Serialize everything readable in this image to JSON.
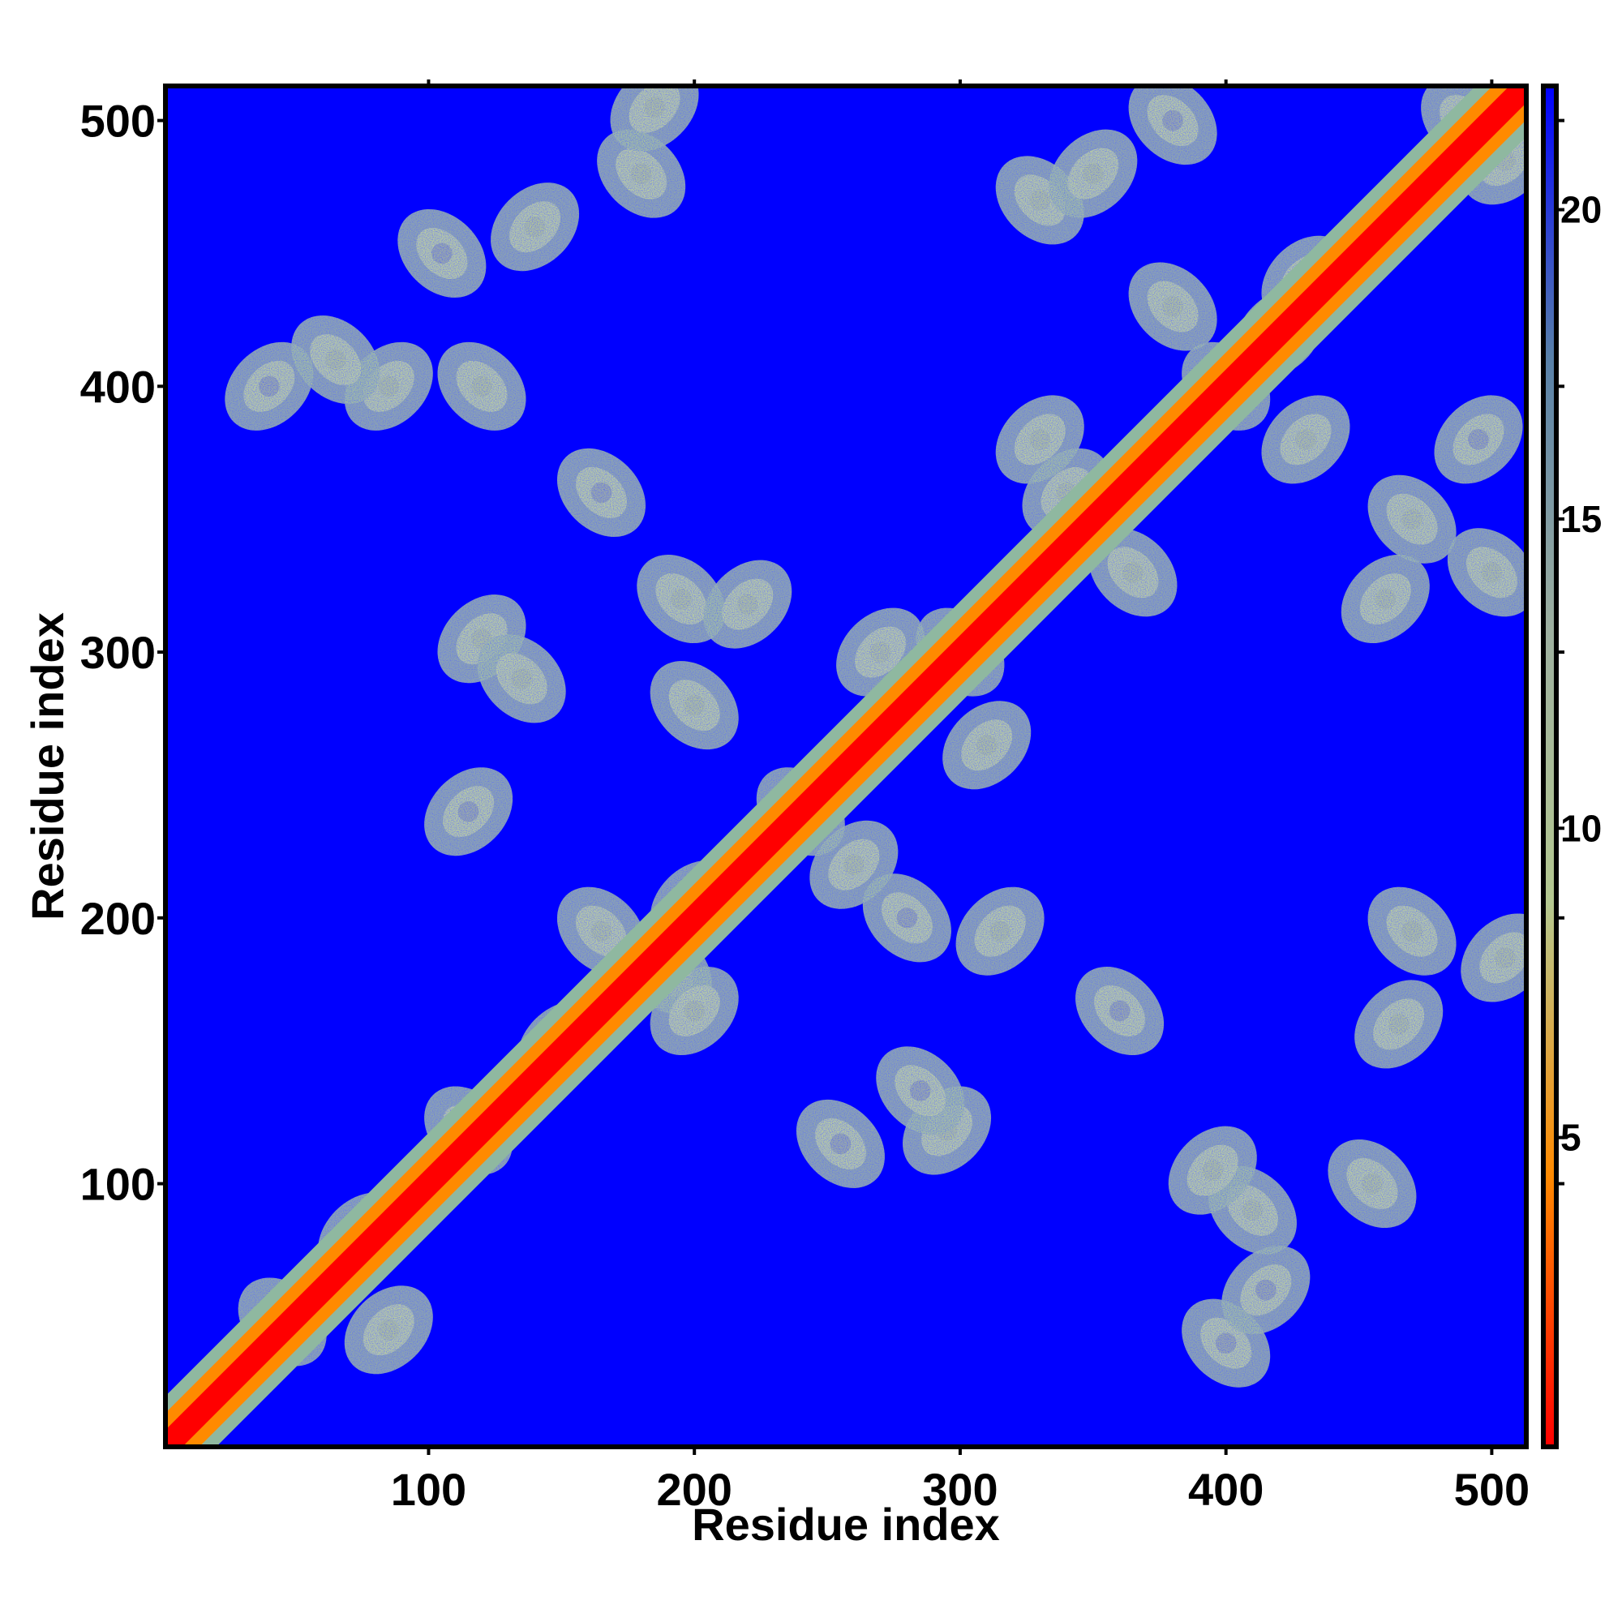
{
  "chart_data": {
    "type": "heatmap",
    "title": "",
    "xlabel": "Residue index",
    "ylabel": "Residue index",
    "xlim": [
      1,
      513
    ],
    "ylim": [
      1,
      513
    ],
    "x_ticks": [
      100,
      200,
      300,
      400,
      500
    ],
    "y_ticks": [
      100,
      200,
      300,
      400,
      500
    ],
    "colorbar": {
      "range": [
        0,
        22
      ],
      "ticks": [
        5,
        10,
        15,
        20
      ],
      "colors": [
        "#ff0000",
        "#ff8a00",
        "#b4c890",
        "#9eb0a0",
        "#5880a8",
        "#0000ff"
      ]
    },
    "diagonal": {
      "start": 1,
      "end": 513
    },
    "contact_regions": [
      {
        "x": 75,
        "y": 80,
        "value": 8
      },
      {
        "x": 45,
        "y": 48,
        "value": 9
      },
      {
        "x": 85,
        "y": 45,
        "value": 10
      },
      {
        "x": 115,
        "y": 120,
        "value": 9
      },
      {
        "x": 150,
        "y": 152,
        "value": 8
      },
      {
        "x": 190,
        "y": 180,
        "value": 9
      },
      {
        "x": 200,
        "y": 205,
        "value": 8
      },
      {
        "x": 165,
        "y": 195,
        "value": 10
      },
      {
        "x": 200,
        "y": 165,
        "value": 9
      },
      {
        "x": 240,
        "y": 240,
        "value": 8
      },
      {
        "x": 260,
        "y": 220,
        "value": 10
      },
      {
        "x": 280,
        "y": 200,
        "value": 11
      },
      {
        "x": 270,
        "y": 300,
        "value": 9
      },
      {
        "x": 300,
        "y": 300,
        "value": 8
      },
      {
        "x": 310,
        "y": 265,
        "value": 10
      },
      {
        "x": 195,
        "y": 320,
        "value": 9
      },
      {
        "x": 220,
        "y": 318,
        "value": 10
      },
      {
        "x": 165,
        "y": 360,
        "value": 11
      },
      {
        "x": 120,
        "y": 305,
        "value": 9
      },
      {
        "x": 135,
        "y": 290,
        "value": 10
      },
      {
        "x": 115,
        "y": 240,
        "value": 11
      },
      {
        "x": 200,
        "y": 280,
        "value": 10
      },
      {
        "x": 140,
        "y": 460,
        "value": 10
      },
      {
        "x": 180,
        "y": 480,
        "value": 9
      },
      {
        "x": 185,
        "y": 505,
        "value": 9
      },
      {
        "x": 105,
        "y": 450,
        "value": 11
      },
      {
        "x": 85,
        "y": 400,
        "value": 9
      },
      {
        "x": 65,
        "y": 410,
        "value": 10
      },
      {
        "x": 40,
        "y": 400,
        "value": 11
      },
      {
        "x": 255,
        "y": 115,
        "value": 11
      },
      {
        "x": 295,
        "y": 120,
        "value": 10
      },
      {
        "x": 285,
        "y": 135,
        "value": 11
      },
      {
        "x": 315,
        "y": 195,
        "value": 9
      },
      {
        "x": 360,
        "y": 165,
        "value": 11
      },
      {
        "x": 340,
        "y": 360,
        "value": 9
      },
      {
        "x": 365,
        "y": 330,
        "value": 9
      },
      {
        "x": 330,
        "y": 380,
        "value": 10
      },
      {
        "x": 400,
        "y": 400,
        "value": 8
      },
      {
        "x": 420,
        "y": 420,
        "value": 9
      },
      {
        "x": 380,
        "y": 430,
        "value": 9
      },
      {
        "x": 430,
        "y": 380,
        "value": 10
      },
      {
        "x": 330,
        "y": 470,
        "value": 10
      },
      {
        "x": 350,
        "y": 480,
        "value": 10
      },
      {
        "x": 380,
        "y": 500,
        "value": 11
      },
      {
        "x": 430,
        "y": 440,
        "value": 10
      },
      {
        "x": 470,
        "y": 350,
        "value": 10
      },
      {
        "x": 460,
        "y": 320,
        "value": 9
      },
      {
        "x": 500,
        "y": 330,
        "value": 10
      },
      {
        "x": 495,
        "y": 380,
        "value": 11
      },
      {
        "x": 490,
        "y": 500,
        "value": 8
      },
      {
        "x": 505,
        "y": 485,
        "value": 9
      },
      {
        "x": 410,
        "y": 90,
        "value": 9
      },
      {
        "x": 395,
        "y": 105,
        "value": 10
      },
      {
        "x": 400,
        "y": 40,
        "value": 11
      },
      {
        "x": 415,
        "y": 60,
        "value": 11
      },
      {
        "x": 455,
        "y": 100,
        "value": 10
      },
      {
        "x": 465,
        "y": 160,
        "value": 10
      },
      {
        "x": 470,
        "y": 195,
        "value": 9
      },
      {
        "x": 505,
        "y": 185,
        "value": 9
      },
      {
        "x": 120,
        "y": 400,
        "value": 10
      }
    ]
  }
}
